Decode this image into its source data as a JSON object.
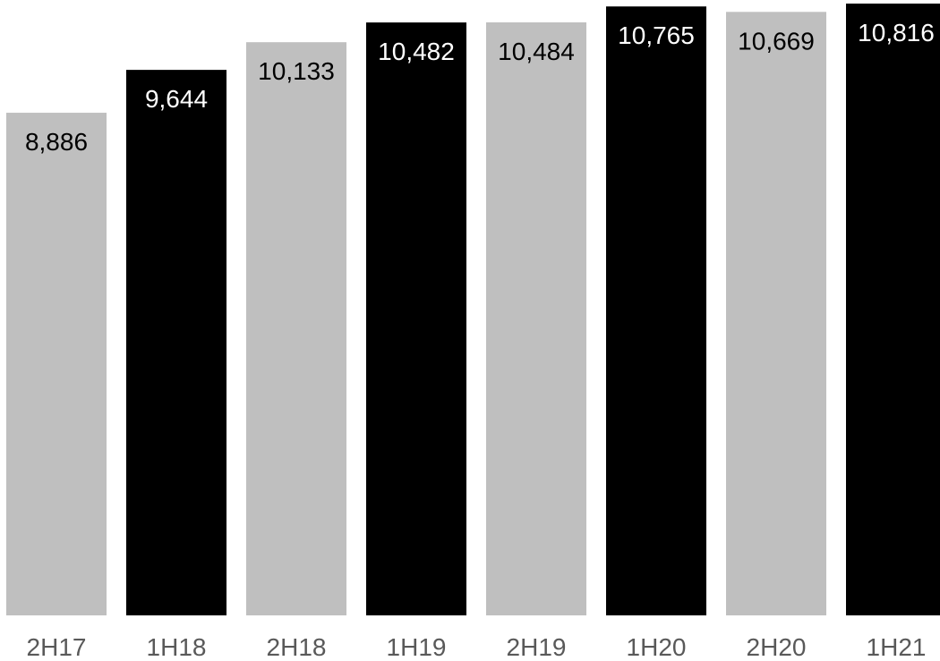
{
  "chart_data": {
    "type": "bar",
    "title": "",
    "xlabel": "",
    "ylabel": "",
    "categories": [
      "2H17",
      "1H18",
      "2H18",
      "1H19",
      "2H19",
      "1H20",
      "2H20",
      "1H21"
    ],
    "values": [
      8886,
      9644,
      10133,
      10482,
      10484,
      10765,
      10669,
      10816
    ],
    "value_labels": [
      "8,886",
      "9,644",
      "10,133",
      "10,482",
      "10,484",
      "10,765",
      "10,669",
      "10,816"
    ],
    "ylim": [
      0,
      10816
    ],
    "grid": false,
    "legend": "none",
    "colors": {
      "alternating_bars": [
        "#bfbfbf",
        "#000000"
      ],
      "label_on_light": "#000000",
      "label_on_dark": "#ffffff",
      "tick_label": "#595959"
    }
  }
}
